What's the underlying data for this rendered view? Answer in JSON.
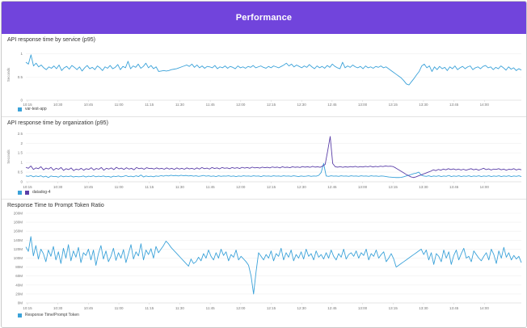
{
  "header": {
    "title": "Performance",
    "color": "#7144dc"
  },
  "charts": [
    {
      "title": "API response time by service (p95)",
      "type": "line",
      "ylabel": "Seconds",
      "yticks": [
        "1",
        "0.5",
        "0"
      ],
      "ylim": [
        0,
        1.1
      ],
      "xticks": [
        "10:15",
        "10:30",
        "10:45",
        "11:00",
        "11:15",
        "11:30",
        "11:45",
        "12:00",
        "12:15",
        "12:30",
        "12:45",
        "13:00",
        "13:15",
        "13:30",
        "13:45",
        "14:00"
      ],
      "series": [
        {
          "name": "var-test-app",
          "color": "#3ba2d9",
          "values": [
            0.82,
            0.78,
            0.98,
            0.74,
            0.8,
            0.72,
            0.76,
            0.7,
            0.66,
            0.72,
            0.69,
            0.74,
            0.68,
            0.76,
            0.64,
            0.7,
            0.73,
            0.67,
            0.75,
            0.71,
            0.66,
            0.72,
            0.63,
            0.7,
            0.75,
            0.68,
            0.71,
            0.66,
            0.74,
            0.7,
            0.64,
            0.72,
            0.69,
            0.75,
            0.68,
            0.71,
            0.77,
            0.66,
            0.73,
            0.7,
            0.84,
            0.68,
            0.74,
            0.71,
            0.78,
            0.69,
            0.73,
            0.8,
            0.7,
            0.75,
            0.68,
            0.72,
            0.62,
            0.63,
            0.64,
            0.63,
            0.64,
            0.66,
            0.67,
            0.68,
            0.7,
            0.72,
            0.74,
            0.76,
            0.73,
            0.78,
            0.71,
            0.76,
            0.7,
            0.74,
            0.69,
            0.73,
            0.72,
            0.7,
            0.75,
            0.68,
            0.72,
            0.7,
            0.74,
            0.69,
            0.73,
            0.71,
            0.68,
            0.74,
            0.7,
            0.72,
            0.69,
            0.73,
            0.71,
            0.75,
            0.7,
            0.72,
            0.74,
            0.71,
            0.69,
            0.73,
            0.7,
            0.74,
            0.72,
            0.7,
            0.73,
            0.76,
            0.8,
            0.74,
            0.78,
            0.72,
            0.76,
            0.73,
            0.7,
            0.74,
            0.71,
            0.77,
            0.72,
            0.68,
            0.74,
            0.7,
            0.73,
            0.69,
            0.75,
            0.71,
            0.78,
            0.73,
            0.7,
            0.68,
            0.82,
            0.7,
            0.74,
            0.71,
            0.76,
            0.72,
            0.7,
            0.73,
            0.68,
            0.74,
            0.7,
            0.72,
            0.69,
            0.73,
            0.71,
            0.74,
            0.7,
            0.72,
            0.68,
            0.64,
            0.6,
            0.56,
            0.52,
            0.48,
            0.42,
            0.35,
            0.33,
            0.4,
            0.47,
            0.55,
            0.62,
            0.74,
            0.78,
            0.7,
            0.74,
            0.62,
            0.72,
            0.66,
            0.73,
            0.68,
            0.71,
            0.64,
            0.72,
            0.68,
            0.74,
            0.66,
            0.7,
            0.73,
            0.68,
            0.72,
            0.74,
            0.66,
            0.7,
            0.72,
            0.68,
            0.73,
            0.75,
            0.7,
            0.72,
            0.66,
            0.71,
            0.68,
            0.74,
            0.7,
            0.65,
            0.72,
            0.67,
            0.7,
            0.64,
            0.68,
            0.65
          ]
        }
      ]
    },
    {
      "title": "API response time by organization (p95)",
      "type": "line",
      "ylabel": "Seconds",
      "yticks": [
        "2.5",
        "2",
        "1.5",
        "1",
        "0.5",
        "0"
      ],
      "ylim": [
        0,
        2.6
      ],
      "xticks": [
        "10:15",
        "10:30",
        "10:45",
        "11:00",
        "11:15",
        "11:30",
        "11:45",
        "12:00",
        "12:15",
        "12:30",
        "12:45",
        "13:00",
        "13:15",
        "13:30",
        "13:45",
        "14:00"
      ],
      "series": [
        {
          "name": "",
          "color": "#3ba2d9",
          "values": [
            0.3,
            0.28,
            0.32,
            0.26,
            0.3,
            0.27,
            0.31,
            0.25,
            0.29,
            0.22,
            0.3,
            0.27,
            0.28,
            0.24,
            0.31,
            0.26,
            0.29,
            0.27,
            0.3,
            0.25,
            0.28,
            0.26,
            0.27,
            0.3,
            0.25,
            0.29,
            0.27,
            0.31,
            0.26,
            0.29,
            0.27,
            0.3,
            0.26,
            0.28,
            0.24,
            0.29,
            0.27,
            0.3,
            0.26,
            0.28,
            0.32,
            0.27,
            0.29,
            0.26,
            0.31,
            0.27,
            0.35,
            0.25,
            0.3,
            0.27,
            0.29,
            0.26,
            0.3,
            0.28,
            0.32,
            0.29,
            0.33,
            0.3,
            0.34,
            0.31,
            0.33,
            0.3,
            0.34,
            0.31,
            0.33,
            0.3,
            0.32,
            0.29,
            0.31,
            0.28,
            0.3,
            0.33,
            0.29,
            0.31,
            0.28,
            0.3,
            0.27,
            0.31,
            0.28,
            0.3,
            0.29,
            0.31,
            0.28,
            0.3,
            0.27,
            0.3,
            0.28,
            0.31,
            0.29,
            0.3,
            0.28,
            0.31,
            0.29,
            0.3,
            0.27,
            0.31,
            0.29,
            0.3,
            0.28,
            0.31,
            0.29,
            0.3,
            0.28,
            0.31,
            0.29,
            0.3,
            0.28,
            0.31,
            0.29,
            0.27,
            0.3,
            0.28,
            0.29,
            0.31,
            0.28,
            0.3,
            0.29,
            0.33,
            0.48,
            0.95,
            0.3,
            0.28,
            0.31,
            0.29,
            0.3,
            0.28,
            0.31,
            0.29,
            0.3,
            0.28,
            0.31,
            0.29,
            0.3,
            0.28,
            0.31,
            0.29,
            0.3,
            0.28,
            0.31,
            0.29,
            0.3,
            0.28,
            0.3,
            0.29,
            0.27,
            0.25,
            0.24,
            0.23,
            0.22,
            0.22,
            0.23,
            0.26,
            0.3,
            0.34,
            0.38,
            0.42,
            0.45,
            0.5,
            0.35,
            0.3,
            0.28,
            0.31,
            0.27,
            0.3,
            0.28,
            0.31,
            0.27,
            0.3,
            0.28,
            0.33,
            0.27,
            0.3,
            0.28,
            0.31,
            0.27,
            0.3,
            0.28,
            0.31,
            0.27,
            0.3,
            0.28,
            0.31,
            0.27,
            0.3,
            0.28,
            0.31,
            0.27,
            0.3,
            0.28,
            0.31,
            0.27,
            0.3,
            0.28,
            0.31,
            0.27,
            0.3,
            0.28,
            0.31,
            0.27
          ]
        },
        {
          "name": "datadog-4",
          "color": "#5b3fa8",
          "values": [
            0.75,
            0.7,
            0.82,
            0.64,
            0.72,
            0.68,
            0.78,
            0.62,
            0.71,
            0.66,
            0.75,
            0.6,
            0.7,
            0.65,
            0.74,
            0.59,
            0.68,
            0.63,
            0.72,
            0.58,
            0.66,
            0.62,
            0.7,
            0.6,
            0.68,
            0.64,
            0.73,
            0.61,
            0.69,
            0.65,
            0.74,
            0.6,
            0.7,
            0.66,
            0.72,
            0.63,
            0.75,
            0.67,
            0.71,
            0.64,
            0.73,
            0.66,
            0.7,
            0.62,
            0.74,
            0.68,
            0.71,
            0.65,
            0.73,
            0.69,
            0.7,
            0.66,
            0.72,
            0.67,
            0.7,
            0.65,
            0.72,
            0.66,
            0.7,
            0.64,
            0.72,
            0.66,
            0.7,
            0.65,
            0.72,
            0.67,
            0.7,
            0.65,
            0.72,
            0.66,
            0.74,
            0.68,
            0.71,
            0.66,
            0.74,
            0.69,
            0.72,
            0.67,
            0.74,
            0.7,
            0.72,
            0.68,
            0.74,
            0.7,
            0.73,
            0.69,
            0.75,
            0.71,
            0.74,
            0.7,
            0.76,
            0.72,
            0.74,
            0.71,
            0.76,
            0.73,
            0.75,
            0.72,
            0.77,
            0.74,
            0.76,
            0.72,
            0.78,
            0.74,
            0.76,
            0.73,
            0.78,
            0.75,
            0.77,
            0.74,
            0.79,
            0.76,
            0.78,
            0.75,
            0.8,
            0.76,
            0.78,
            0.75,
            0.82,
            0.9,
            1.6,
            2.35,
            0.95,
            0.78,
            0.76,
            0.79,
            0.75,
            0.78,
            0.76,
            0.79,
            0.77,
            0.8,
            0.76,
            0.79,
            0.77,
            0.8,
            0.78,
            0.81,
            0.77,
            0.8,
            0.78,
            0.81,
            0.79,
            0.82,
            0.8,
            0.81,
            0.79,
            0.72,
            0.64,
            0.56,
            0.48,
            0.4,
            0.33,
            0.26,
            0.22,
            0.25,
            0.3,
            0.35,
            0.4,
            0.45,
            0.5,
            0.55,
            0.62,
            0.58,
            0.64,
            0.6,
            0.66,
            0.62,
            0.68,
            0.63,
            0.67,
            0.62,
            0.66,
            0.61,
            0.65,
            0.6,
            0.64,
            0.68,
            0.62,
            0.66,
            0.6,
            0.65,
            0.7,
            0.63,
            0.67,
            0.61,
            0.66,
            0.64,
            0.68,
            0.62,
            0.66,
            0.6,
            0.65,
            0.63,
            0.68,
            0.61,
            0.66,
            0.62
          ]
        }
      ]
    },
    {
      "title": "Response Time to Prompt Token Ratio",
      "type": "line",
      "ylabel": "",
      "yticks": [
        "200M",
        "180M",
        "160M",
        "140M",
        "120M",
        "100M",
        "80M",
        "60M",
        "40M",
        "20M",
        "0M"
      ],
      "ylim": [
        0,
        200
      ],
      "xticks": [
        "10:15",
        "10:30",
        "10:45",
        "11:00",
        "11:15",
        "11:30",
        "11:45",
        "12:00",
        "12:15",
        "12:30",
        "12:45",
        "13:00",
        "13:15",
        "13:30",
        "13:45",
        "14:00"
      ],
      "series": [
        {
          "name": "Response Time/Prompt Token",
          "color": "#3ba2d9",
          "values": [
            125,
            115,
            148,
            105,
            128,
            98,
            120,
            110,
            92,
            118,
            104,
            126,
            96,
            114,
            88,
            122,
            100,
            130,
            94,
            116,
            102,
            124,
            90,
            112,
            106,
            120,
            96,
            118,
            84,
            110,
            128,
            98,
            116,
            92,
            104,
            122,
            95,
            112,
            100,
            119,
            90,
            110,
            130,
            98,
            114,
            105,
            132,
            96,
            118,
            108,
            121,
            100,
            126,
            112,
            120,
            128,
            138,
            132,
            124,
            118,
            112,
            106,
            100,
            94,
            88,
            82,
            98,
            88,
            92,
            102,
            94,
            110,
            100,
            118,
            104,
            96,
            112,
            100,
            120,
            106,
            114,
            94,
            108,
            102,
            118,
            96,
            104,
            98,
            92,
            84,
            60,
            20,
            70,
            112,
            104,
            96,
            108,
            100,
            116,
            94,
            110,
            104,
            122,
            96,
            112,
            102,
            118,
            94,
            108,
            100,
            114,
            98,
            120,
            104,
            110,
            96,
            116,
            102,
            108,
            98,
            112,
            100,
            118,
            104,
            96,
            110,
            102,
            120,
            98,
            108,
            112,
            104,
            116,
            100,
            112,
            106,
            120,
            96,
            110,
            104,
            118,
            100,
            108,
            114,
            92,
            100,
            110,
            98,
            80,
            84,
            88,
            92,
            96,
            100,
            104,
            108,
            112,
            116,
            120,
            108,
            118,
            96,
            112,
            86,
            110,
            104,
            92,
            118,
            100,
            114,
            86,
            106,
            118,
            96,
            110,
            122,
            100,
            104,
            92,
            116,
            108,
            100,
            94,
            104,
            112,
            96,
            120,
            108,
            88,
            116,
            100,
            124,
            102,
            112,
            96,
            106,
            98,
            104,
            90
          ]
        }
      ]
    }
  ]
}
